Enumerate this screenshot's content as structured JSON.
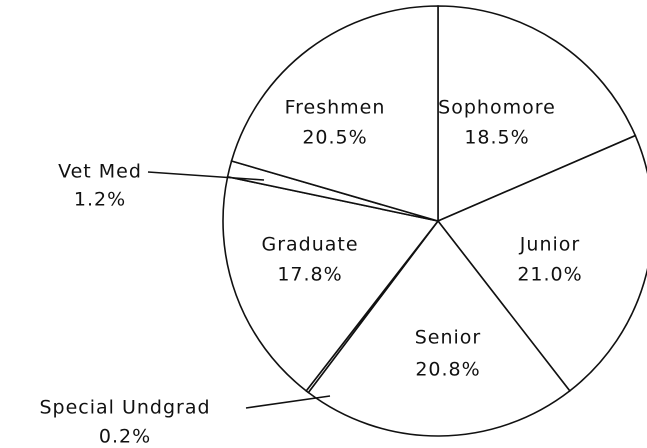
{
  "chart_data": {
    "type": "pie",
    "categories": [
      "Sophomore",
      "Junior",
      "Senior",
      "Special Undgrad",
      "Graduate",
      "Vet Med",
      "Freshmen"
    ],
    "values": [
      18.5,
      21.0,
      20.8,
      0.2,
      17.8,
      1.2,
      20.5
    ],
    "value_labels": [
      "18.5%",
      "21.0%",
      "20.8%",
      "0.2%",
      "17.8%",
      "1.2%",
      "20.5%"
    ],
    "color": "#ffffff"
  }
}
